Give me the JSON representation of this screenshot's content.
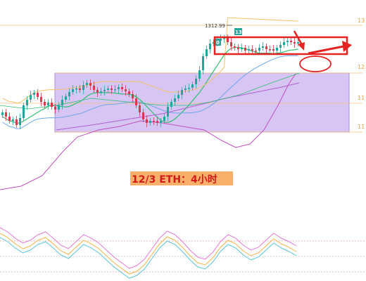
{
  "caption": "12/3 ETH：4小时",
  "price_marker": "1312.99",
  "right_axis_ticks": [
    "13",
    "12",
    "11",
    "11"
  ],
  "flags": [
    "0",
    "13"
  ],
  "colors": {
    "bull": "#26a69a",
    "bear": "#d9394d",
    "boll_upper": "#f4c26b",
    "boll_lower": "#c050c0",
    "ma_fast": "#2fbf71",
    "ma_mid": "#6aa9e8",
    "ma_slow": "#b060d0",
    "zone_fill": "#c9b2f0",
    "zone_border": "#e6a23c",
    "annotation": "#e52222"
  },
  "chart_data": {
    "type": "candlestick",
    "title": "12/3 ETH：4小时",
    "series": [
      {
        "name": "",
        "kind": "candles",
        "count": 85
      },
      {
        "name": "",
        "kind": "moving-average"
      },
      {
        "name": "",
        "kind": "bollinger-upper"
      },
      {
        "name": "",
        "kind": "bollinger-lower"
      }
    ],
    "annotations": [
      "1312.99",
      "0",
      "13"
    ],
    "oscillator": {
      "type": "line",
      "series_count": 3
    },
    "grid": false
  }
}
